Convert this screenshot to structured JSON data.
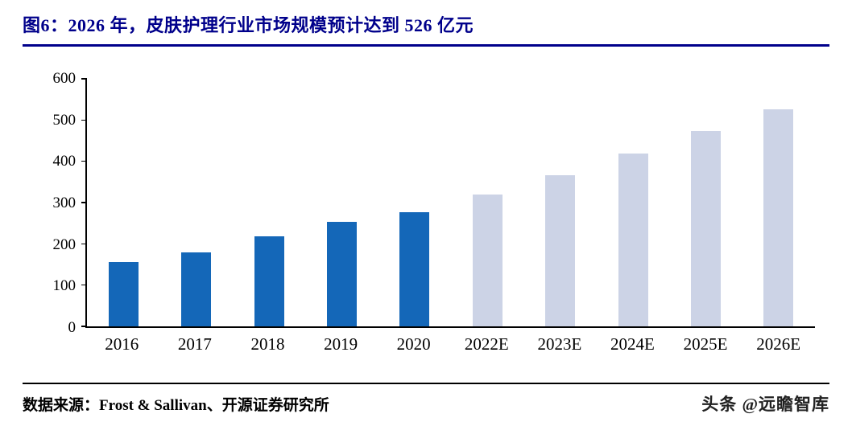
{
  "header": {
    "title": "图6：2026 年，皮肤护理行业市场规模预计达到 526 亿元"
  },
  "chart_data": {
    "type": "bar",
    "title": "2026 年，皮肤护理行业市场规模预计达到 526 亿元",
    "categories": [
      "2016",
      "2017",
      "2018",
      "2019",
      "2020",
      "2022E",
      "2023E",
      "2024E",
      "2025E",
      "2026E"
    ],
    "values": [
      155,
      180,
      218,
      254,
      276,
      319,
      366,
      418,
      474,
      526
    ],
    "forecast_from_index": 5,
    "xlabel": "",
    "ylabel": "",
    "ylim": [
      0,
      600
    ],
    "ytick_step": 100,
    "grid": false,
    "legend": "none",
    "colors": {
      "actual_bar": "#1467b8",
      "forecast_bar": "#ccd3e6"
    }
  },
  "colors": {
    "title_text": "#00008b",
    "title_rule": "#00008b",
    "axis": "#000000"
  },
  "footer": {
    "source": "数据来源：Frost & Sallivan、开源证券研究所",
    "watermark": "头条 @远瞻智库"
  }
}
